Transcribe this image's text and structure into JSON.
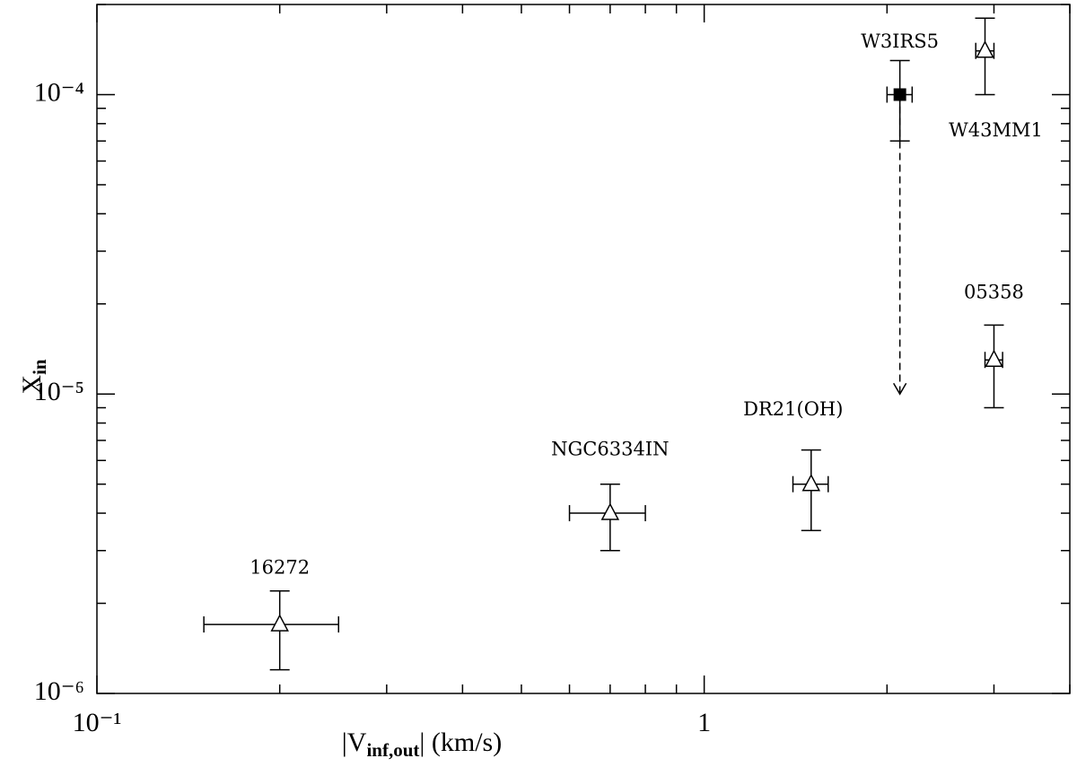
{
  "chart_data": {
    "type": "scatter",
    "xlabel": {
      "main": "|V",
      "sub": "inf,out",
      "rest": "| (km/s)"
    },
    "ylabel": {
      "main": "X",
      "sub": "in"
    },
    "log_x": true,
    "log_y": true,
    "xlim": [
      0.1,
      4
    ],
    "ylim": [
      1e-06,
      0.0002
    ],
    "xticks": [
      {
        "value": 0.1,
        "label": "10⁻¹"
      },
      1
    ],
    "yticks": [
      {
        "value": 1e-06,
        "label": "10⁻⁶"
      },
      {
        "value": 1e-05,
        "label": "10⁻⁵"
      },
      {
        "value": 0.0001,
        "label": "10⁻⁴"
      }
    ],
    "xminorticks": [
      0.2,
      0.3,
      0.4,
      0.5,
      0.6,
      0.7,
      0.8,
      0.9,
      2,
      3,
      4
    ],
    "yminorticks": [
      2e-06,
      3e-06,
      4e-06,
      5e-06,
      6e-06,
      7e-06,
      8e-06,
      9e-06,
      2e-05,
      3e-05,
      4e-05,
      5e-05,
      6e-05,
      7e-05,
      8e-05,
      9e-05,
      0.0002
    ],
    "color": "#000000",
    "points": [
      {
        "label": "16272",
        "x": 0.2,
        "xerr": 0.05,
        "y": 1.7e-06,
        "yerr": 5e-07,
        "marker": "open-triangle"
      },
      {
        "label": "NGC6334IN",
        "x": 0.7,
        "xerr": 0.1,
        "y": 4e-06,
        "yerr": 1e-06,
        "marker": "open-triangle"
      },
      {
        "label": "DR21(OH)",
        "x": 1.5,
        "xerr": 0.1,
        "y": 5e-06,
        "yerr": 1.5e-06,
        "marker": "open-triangle"
      },
      {
        "label": "W3IRS5",
        "x": 2.1,
        "xerr": 0.1,
        "y": 0.0001,
        "yerr": 3e-05,
        "marker": "filled-square",
        "arrow_to": 1e-05
      },
      {
        "label": "W43MM1",
        "x": 2.9,
        "xerr": 0.1,
        "y": 0.00014,
        "yerr": 4e-05,
        "marker": "open-triangle"
      },
      {
        "label": "05358",
        "x": 3.0,
        "xerr": 0.1,
        "y": 1.3e-05,
        "yerr": 4e-06,
        "marker": "open-triangle"
      }
    ]
  }
}
